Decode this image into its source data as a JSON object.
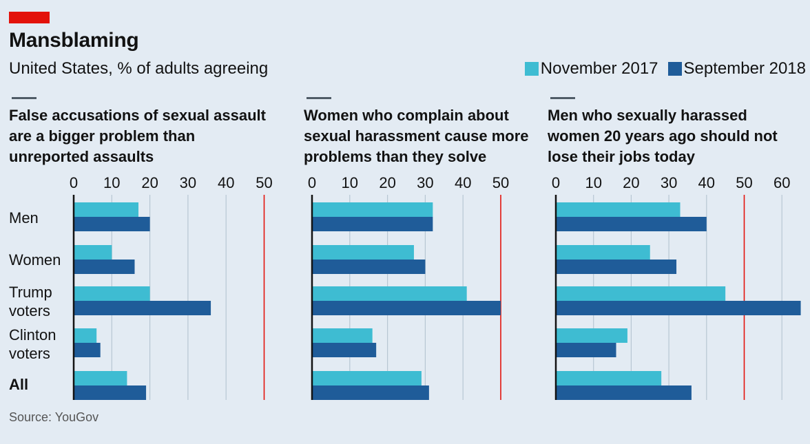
{
  "title": "Mansblaming",
  "subtitle": "United States, % of adults agreeing",
  "source": "Source: YouGov",
  "colors": {
    "november_2017": "#3ebcd2",
    "september_2018": "#1f5c99",
    "background": "#e3ebf3",
    "grid": "#b7c6d3",
    "highlight": "#e3120b"
  },
  "legend": [
    {
      "label": "November 2017",
      "color": "#3ebcd2"
    },
    {
      "label": "September 2018",
      "color": "#1f5c99"
    }
  ],
  "chart_data": [
    {
      "type": "bar",
      "orientation": "horizontal",
      "title": "False accusations of sexual assault are a bigger problem than unreported assaults",
      "title_lines": [
        "False accusations of sexual assault",
        "are a bigger problem than",
        "unreported assaults"
      ],
      "categories": [
        "Men",
        "Women",
        "Trump voters",
        "Clinton voters",
        "All"
      ],
      "xlim": [
        0,
        50
      ],
      "xticks": [
        0,
        10,
        20,
        30,
        40,
        50
      ],
      "highlight_line": 50,
      "grid": true,
      "series": [
        {
          "name": "November 2017",
          "values": [
            17,
            10,
            20,
            6,
            14
          ]
        },
        {
          "name": "September 2018",
          "values": [
            20,
            16,
            36,
            7,
            19
          ]
        }
      ]
    },
    {
      "type": "bar",
      "orientation": "horizontal",
      "title": "Women who complain about sexual harassment cause more problems than they solve",
      "title_lines": [
        "Women who complain about",
        "sexual harassment cause more",
        "problems than they solve"
      ],
      "categories": [
        "Men",
        "Women",
        "Trump voters",
        "Clinton voters",
        "All"
      ],
      "xlim": [
        0,
        50
      ],
      "xticks": [
        0,
        10,
        20,
        30,
        40,
        50
      ],
      "highlight_line": 50,
      "grid": true,
      "series": [
        {
          "name": "November 2017",
          "values": [
            32,
            27,
            41,
            16,
            29
          ]
        },
        {
          "name": "September 2018",
          "values": [
            32,
            30,
            50,
            17,
            31
          ]
        }
      ]
    },
    {
      "type": "bar",
      "orientation": "horizontal",
      "title": "Men who sexually harassed women 20 years ago should not lose their jobs today",
      "title_lines": [
        "Men who sexually harassed",
        "women 20 years ago should not",
        "lose their jobs today"
      ],
      "categories": [
        "Men",
        "Women",
        "Trump voters",
        "Clinton voters",
        "All"
      ],
      "xlim": [
        0,
        65
      ],
      "xticks": [
        0,
        10,
        20,
        30,
        40,
        50,
        60
      ],
      "highlight_line": 50,
      "grid": true,
      "series": [
        {
          "name": "November 2017",
          "values": [
            33,
            25,
            45,
            19,
            28
          ]
        },
        {
          "name": "September 2018",
          "values": [
            40,
            32,
            65,
            16,
            36
          ]
        }
      ]
    }
  ],
  "category_labels": [
    {
      "lines": [
        "Men"
      ],
      "bold": false
    },
    {
      "lines": [
        "Women"
      ],
      "bold": false
    },
    {
      "lines": [
        "Trump",
        "voters"
      ],
      "bold": false
    },
    {
      "lines": [
        "Clinton",
        "voters"
      ],
      "bold": false
    },
    {
      "lines": [
        "All"
      ],
      "bold": true
    }
  ]
}
